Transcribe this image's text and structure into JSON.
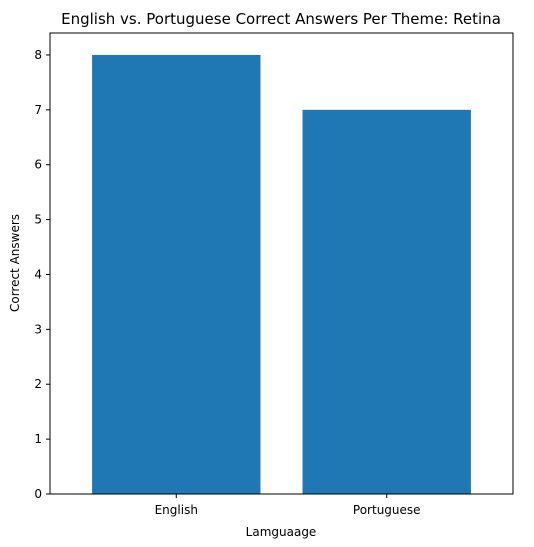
{
  "chart_data": {
    "type": "bar",
    "title": "English vs. Portuguese Correct Answers Per Theme: Retina",
    "xlabel": "Lamguaage",
    "ylabel": "Correct Answers",
    "categories": [
      "English",
      "Portuguese"
    ],
    "values": [
      8,
      7
    ],
    "ylim": [
      0,
      8.4
    ],
    "yticks": [
      0,
      1,
      2,
      3,
      4,
      5,
      6,
      7,
      8
    ],
    "bar_color": "#1f77b4",
    "grid": false,
    "legend": "none"
  }
}
